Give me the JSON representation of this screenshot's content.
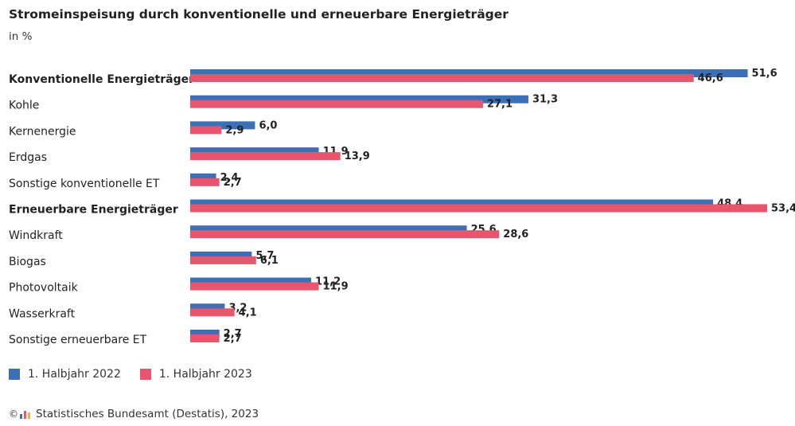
{
  "chart_data": {
    "type": "bar",
    "orientation": "horizontal",
    "title": "Stromeinspeisung durch konventionelle und erneuerbare Energieträger",
    "subtitle": "in %",
    "categories": [
      "Konventionelle Energieträger",
      "Kohle",
      "Kernenergie",
      "Erdgas",
      "Sonstige konventionelle ET",
      "Erneuerbare Energieträger",
      "Windkraft",
      "Biogas",
      "Photovoltaik",
      "Wasserkraft",
      "Sonstige erneuerbare ET"
    ],
    "bold_categories": [
      "Konventionelle Energieträger",
      "Erneuerbare Energieträger"
    ],
    "series": [
      {
        "name": "1. Halbjahr 2022",
        "color": "#3b6fb6",
        "values": [
          51.6,
          31.3,
          6.0,
          11.9,
          2.4,
          48.4,
          25.6,
          5.7,
          11.2,
          3.2,
          2.7
        ],
        "labels": [
          "51,6",
          "31,3",
          "6,0",
          "11,9",
          "2,4",
          "48,4",
          "25,6",
          "5,7",
          "11,2",
          "3,2",
          "2,7"
        ]
      },
      {
        "name": "1. Halbjahr 2023",
        "color": "#e8556d",
        "values": [
          46.6,
          27.1,
          2.9,
          13.9,
          2.7,
          53.4,
          28.6,
          6.1,
          11.9,
          4.1,
          2.7
        ],
        "labels": [
          "46,6",
          "27,1",
          "2,9",
          "13,9",
          "2,7",
          "53,4",
          "28,6",
          "6,1",
          "11,9",
          "4,1",
          "2,7"
        ]
      }
    ],
    "xlim": [
      0,
      53.4
    ],
    "grid": false,
    "legend": "bottom-left"
  },
  "source": {
    "copyright": "©",
    "text": "Statistisches Bundesamt (Destatis), 2023"
  }
}
